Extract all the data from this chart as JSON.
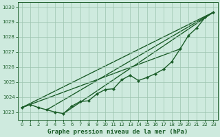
{
  "title": "Graphe pression niveau de la mer (hPa)",
  "background_color": "#ceeade",
  "grid_color": "#9dc4b0",
  "line_color": "#1a5c28",
  "xlim": [
    -0.5,
    23.5
  ],
  "ylim": [
    1022.5,
    1030.3
  ],
  "yticks": [
    1023,
    1024,
    1025,
    1026,
    1027,
    1028,
    1029,
    1030
  ],
  "xticks": [
    0,
    1,
    2,
    3,
    4,
    5,
    6,
    7,
    8,
    9,
    10,
    11,
    12,
    13,
    14,
    15,
    16,
    17,
    18,
    19,
    20,
    21,
    22,
    23
  ],
  "main_series": {
    "x": [
      0,
      1,
      2,
      3,
      4,
      5,
      6,
      7,
      8,
      9,
      10,
      11,
      12,
      13,
      14,
      15,
      16,
      17,
      18,
      19,
      20,
      21,
      22,
      23
    ],
    "y": [
      1023.3,
      1023.5,
      1023.3,
      1023.15,
      1023.0,
      1022.9,
      1023.4,
      1023.7,
      1023.75,
      1024.2,
      1024.5,
      1024.55,
      1025.15,
      1025.45,
      1025.1,
      1025.3,
      1025.55,
      1025.85,
      1026.35,
      1027.2,
      1028.1,
      1028.6,
      1029.3,
      1029.65
    ]
  },
  "straight_lines": [
    {
      "x0": 0,
      "y0": 1023.3,
      "x1": 23,
      "y1": 1029.65
    },
    {
      "x0": 3,
      "y0": 1023.15,
      "x1": 23,
      "y1": 1029.65
    },
    {
      "x0": 5,
      "y0": 1022.9,
      "x1": 23,
      "y1": 1029.65
    },
    {
      "x0": 0,
      "y0": 1023.3,
      "x1": 19,
      "y1": 1027.2
    }
  ],
  "marker": "D",
  "linewidth": 1.0,
  "markersize": 2.2,
  "title_fontsize": 6.5,
  "tick_fontsize": 5.0
}
